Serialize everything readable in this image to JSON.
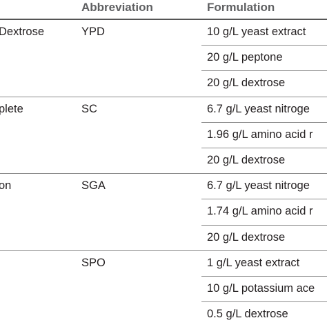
{
  "table": {
    "headers": [
      "Abbreviation",
      "Formulation"
    ],
    "rows": [
      {
        "medium": "Dextrose",
        "abbreviation": "YPD",
        "formulation": "10 g/L yeast extract"
      },
      {
        "medium": "",
        "abbreviation": "",
        "formulation": "20 g/L peptone"
      },
      {
        "medium": "",
        "abbreviation": "",
        "formulation": "20 g/L dextrose"
      },
      {
        "medium": "plete",
        "abbreviation": "SC",
        "formulation": "6.7 g/L yeast nitroge"
      },
      {
        "medium": "",
        "abbreviation": "",
        "formulation": "1.96 g/L amino acid r"
      },
      {
        "medium": "",
        "abbreviation": "",
        "formulation": "20 g/L dextrose"
      },
      {
        "medium": "on",
        "abbreviation": "SGA",
        "formulation": "6.7 g/L yeast nitroge"
      },
      {
        "medium": "",
        "abbreviation": "",
        "formulation": "1.74 g/L amino acid r"
      },
      {
        "medium": "",
        "abbreviation": "",
        "formulation": "20 g/L dextrose"
      },
      {
        "medium": "",
        "abbreviation": "SPO",
        "formulation": "1 g/L yeast extract"
      },
      {
        "medium": "",
        "abbreviation": "",
        "formulation": "10 g/L potassium ace"
      },
      {
        "medium": "",
        "abbreviation": "",
        "formulation": "0.5 g/L dextrose"
      }
    ]
  }
}
